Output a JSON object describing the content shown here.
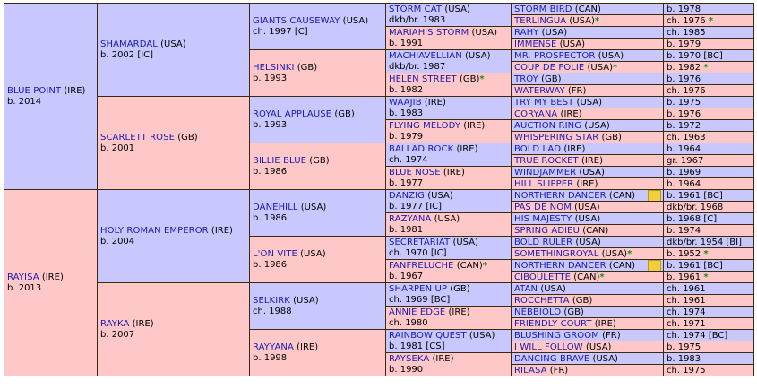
{
  "colors": {
    "male": "#c8c8ff",
    "female": "#ffc8c8",
    "border": "#3a2a14",
    "name": "#1a1ab0",
    "star": "#1a8a1a",
    "inbreeding_marker": "#f2cf3a"
  },
  "gen1": [
    {
      "name": "BLUE POINT",
      "country": "(IRE)",
      "info": "b. 2014"
    },
    {
      "name": "RAYISA",
      "country": "(IRE)",
      "info": "b. 2013"
    }
  ],
  "gen2": [
    {
      "name": "SHAMARDAL",
      "country": "(USA)",
      "info": "b. 2002 [IC]"
    },
    {
      "name": "SCARLETT ROSE",
      "country": "(GB)",
      "info": "b. 2001"
    },
    {
      "name": "HOLY ROMAN EMPEROR",
      "country": "(IRE)",
      "info": "b. 2004"
    },
    {
      "name": "RAYKA",
      "country": "(IRE)",
      "info": "b. 2007"
    }
  ],
  "gen3": [
    {
      "name": "GIANTS CAUSEWAY",
      "country": "(USA)",
      "info": "ch. 1997 [C]"
    },
    {
      "name": "HELSINKI",
      "country": "(GB)",
      "info": "b. 1993"
    },
    {
      "name": "ROYAL APPLAUSE",
      "country": "(GB)",
      "info": "b. 1993"
    },
    {
      "name": "BILLIE BLUE",
      "country": "(GB)",
      "info": "b. 1986"
    },
    {
      "name": "DANEHILL",
      "country": "(USA)",
      "info": "b. 1986"
    },
    {
      "name": "L'ON VITE",
      "country": "(USA)",
      "info": "b. 1986"
    },
    {
      "name": "SELKIRK",
      "country": "(USA)",
      "info": "ch. 1988"
    },
    {
      "name": "RAYYANA",
      "country": "(IRE)",
      "info": "b. 1998"
    }
  ],
  "gen4": [
    {
      "name": "STORM CAT",
      "country": "(USA)",
      "info": "dkb/br. 1983",
      "star": ""
    },
    {
      "name": "MARIAH'S STORM",
      "country": "(USA)",
      "info": "b. 1991",
      "star": ""
    },
    {
      "name": "MACHIAVELLIAN",
      "country": "(USA)",
      "info": "dkb/br. 1987",
      "star": ""
    },
    {
      "name": "HELEN STREET",
      "country": "(GB)",
      "info": "b. 1982",
      "star": "*"
    },
    {
      "name": "WAAJIB",
      "country": "(IRE)",
      "info": "b. 1983",
      "star": ""
    },
    {
      "name": "FLYING MELODY",
      "country": "(IRE)",
      "info": "b. 1979",
      "star": ""
    },
    {
      "name": "BALLAD ROCK",
      "country": "(IRE)",
      "info": "ch. 1974",
      "star": ""
    },
    {
      "name": "BLUE NOSE",
      "country": "(IRE)",
      "info": "b. 1977",
      "star": ""
    },
    {
      "name": "DANZIG",
      "country": "(USA)",
      "info": "b. 1977 [IC]",
      "star": ""
    },
    {
      "name": "RAZYANA",
      "country": "(USA)",
      "info": "b. 1981",
      "star": ""
    },
    {
      "name": "SECRETARIAT",
      "country": "(USA)",
      "info": "ch. 1970 [IC]",
      "star": ""
    },
    {
      "name": "FANFRELUCHE",
      "country": "(CAN)",
      "info": "b. 1967",
      "star": "*"
    },
    {
      "name": "SHARPEN UP",
      "country": "(GB)",
      "info": "ch. 1969 [BC]",
      "star": ""
    },
    {
      "name": "ANNIE EDGE",
      "country": "(IRE)",
      "info": "ch. 1980",
      "star": ""
    },
    {
      "name": "RAINBOW QUEST",
      "country": "(USA)",
      "info": "b. 1981 [CS]",
      "star": ""
    },
    {
      "name": "RAYSEKA",
      "country": "(IRE)",
      "info": "b. 1990",
      "star": ""
    }
  ],
  "gen5": [
    {
      "name": "STORM BIRD",
      "country": "(CAN)",
      "info": "b. 1978",
      "star": "",
      "marker": false
    },
    {
      "name": "TERLINGUA",
      "country": "(USA)",
      "info": "ch. 1976",
      "star": "*",
      "marker": false
    },
    {
      "name": "RAHY",
      "country": "(USA)",
      "info": "ch. 1985",
      "star": "",
      "marker": false
    },
    {
      "name": "IMMENSE",
      "country": "(USA)",
      "info": "b. 1979",
      "star": "",
      "marker": false
    },
    {
      "name": "MR. PROSPECTOR",
      "country": "(USA)",
      "info": "b. 1970 [BC]",
      "star": "",
      "marker": false
    },
    {
      "name": "COUP DE FOLIE",
      "country": "(USA)",
      "info": "b. 1982",
      "star": "*",
      "marker": false
    },
    {
      "name": "TROY",
      "country": "(GB)",
      "info": "b. 1976",
      "star": "",
      "marker": false
    },
    {
      "name": "WATERWAY",
      "country": "(FR)",
      "info": "ch. 1976",
      "star": "",
      "marker": false
    },
    {
      "name": "TRY MY BEST",
      "country": "(USA)",
      "info": "b. 1975",
      "star": "",
      "marker": false
    },
    {
      "name": "CORYANA",
      "country": "(IRE)",
      "info": "b. 1976",
      "star": "",
      "marker": false
    },
    {
      "name": "AUCTION RING",
      "country": "(USA)",
      "info": "b. 1972",
      "star": "",
      "marker": false
    },
    {
      "name": "WHISPERING STAR",
      "country": "(GB)",
      "info": "ch. 1963",
      "star": "",
      "marker": false
    },
    {
      "name": "BOLD LAD",
      "country": "(IRE)",
      "info": "b. 1964",
      "star": "",
      "marker": false
    },
    {
      "name": "TRUE ROCKET",
      "country": "(IRE)",
      "info": "gr. 1967",
      "star": "",
      "marker": false
    },
    {
      "name": "WINDJAMMER",
      "country": "(USA)",
      "info": "b. 1969",
      "star": "",
      "marker": false
    },
    {
      "name": "HILL SLIPPER",
      "country": "(IRE)",
      "info": "b. 1964",
      "star": "",
      "marker": false
    },
    {
      "name": "NORTHERN DANCER",
      "country": "(CAN)",
      "info": "b. 1961 [BC]",
      "star": "",
      "marker": true
    },
    {
      "name": "PAS DE NOM",
      "country": "(USA)",
      "info": "dkb/br. 1968",
      "star": "",
      "marker": false
    },
    {
      "name": "HIS MAJESTY",
      "country": "(USA)",
      "info": "b. 1968 [C]",
      "star": "",
      "marker": false
    },
    {
      "name": "SPRING ADIEU",
      "country": "(CAN)",
      "info": "b. 1974",
      "star": "",
      "marker": false
    },
    {
      "name": "BOLD RULER",
      "country": "(USA)",
      "info": "dkb/br. 1954 [BI]",
      "star": "",
      "marker": false
    },
    {
      "name": "SOMETHINGROYAL",
      "country": "(USA)",
      "info": "b. 1952",
      "star": "*",
      "marker": false
    },
    {
      "name": "NORTHERN DANCER",
      "country": "(CAN)",
      "info": "b. 1961 [BC]",
      "star": "",
      "marker": true
    },
    {
      "name": "CIBOULETTE",
      "country": "(CAN)",
      "info": "b. 1961",
      "star": "*",
      "marker": false
    },
    {
      "name": "ATAN",
      "country": "(USA)",
      "info": "ch. 1961",
      "star": "",
      "marker": false
    },
    {
      "name": "ROCCHETTA",
      "country": "(GB)",
      "info": "ch. 1961",
      "star": "",
      "marker": false
    },
    {
      "name": "NEBBIOLO",
      "country": "(GB)",
      "info": "ch. 1974",
      "star": "",
      "marker": false
    },
    {
      "name": "FRIENDLY COURT",
      "country": "(IRE)",
      "info": "ch. 1971",
      "star": "",
      "marker": false
    },
    {
      "name": "BLUSHING GROOM",
      "country": "(FR)",
      "info": "ch. 1974 [BC]",
      "star": "",
      "marker": false
    },
    {
      "name": "I WILL FOLLOW",
      "country": "(USA)",
      "info": "b. 1975",
      "star": "",
      "marker": false
    },
    {
      "name": "DANCING BRAVE",
      "country": "(USA)",
      "info": "b. 1983",
      "star": "",
      "marker": false
    },
    {
      "name": "RILASA",
      "country": "(FR)",
      "info": "ch. 1975",
      "star": "",
      "marker": false
    }
  ]
}
